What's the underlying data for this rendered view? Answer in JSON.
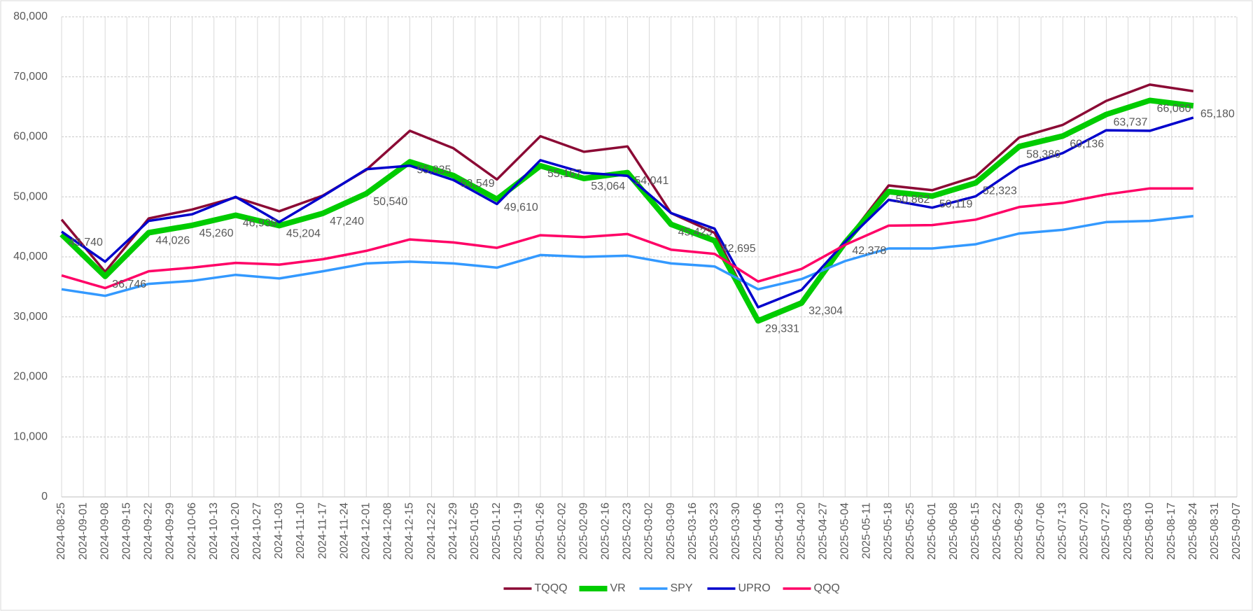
{
  "chart_data": {
    "type": "line",
    "x": [
      "2024-08-25",
      "2024-09-08",
      "2024-09-22",
      "2024-10-06",
      "2024-10-20",
      "2024-11-03",
      "2024-11-17",
      "2024-12-01",
      "2024-12-15",
      "2024-12-29",
      "2025-01-12",
      "2025-01-26",
      "2025-02-09",
      "2025-02-23",
      "2025-03-09",
      "2025-03-23",
      "2025-04-06",
      "2025-04-20",
      "2025-05-04",
      "2025-05-18",
      "2025-06-01",
      "2025-06-15",
      "2025-06-29",
      "2025-07-13",
      "2025-07-27",
      "2025-08-10",
      "2025-08-24"
    ],
    "series": [
      {
        "name": "TQQQ",
        "color": "#8b0a35",
        "width": 3.5,
        "values": [
          46200,
          37500,
          46400,
          47900,
          49900,
          47600,
          50200,
          54500,
          61000,
          58100,
          52900,
          60100,
          57500,
          58400,
          47300,
          44000,
          29600,
          32600,
          42500,
          51900,
          51100,
          53400,
          59900,
          62000,
          66000,
          68700,
          67600
        ]
      },
      {
        "name": "VR",
        "color": "#00cc00",
        "width": 8,
        "values": [
          43740,
          36746,
          44026,
          45260,
          46939,
          45204,
          47240,
          50540,
          55835,
          53549,
          49610,
          55167,
          53064,
          54041,
          45423,
          42695,
          29331,
          32304,
          42378,
          50862,
          50119,
          52323,
          58386,
          60136,
          63737,
          66060,
          65180
        ],
        "value_labels": [
          "43,740",
          "36,746",
          "44,026",
          "45,260",
          "46,939",
          "45,204",
          "47,240",
          "50,540",
          "55,835",
          "53,549",
          "49,610",
          "55,167",
          "53,064",
          "54,041",
          "45,423",
          "42,695",
          "29,331",
          "32,304",
          "42,378",
          "50,862",
          "50,119",
          "52,323",
          "58,386",
          "60,136",
          "63,737",
          "66,060",
          "65,180"
        ]
      },
      {
        "name": "SPY",
        "color": "#3399ff",
        "width": 3.5,
        "values": [
          34600,
          33500,
          35500,
          36000,
          37000,
          36400,
          37600,
          38900,
          39200,
          38900,
          38200,
          40300,
          40000,
          40200,
          38900,
          38400,
          34600,
          36300,
          39300,
          41400,
          41400,
          42100,
          43900,
          44500,
          45800,
          46000,
          46800
        ]
      },
      {
        "name": "UPRO",
        "color": "#0000cc",
        "width": 3.5,
        "values": [
          44200,
          39200,
          46000,
          47100,
          50000,
          45800,
          50100,
          54600,
          55200,
          52800,
          48800,
          56100,
          54000,
          53500,
          47300,
          44700,
          31600,
          34500,
          42500,
          49500,
          48200,
          50100,
          55000,
          57300,
          61100,
          61000,
          63200
        ]
      },
      {
        "name": "QQQ",
        "color": "#ff0066",
        "width": 3.5,
        "values": [
          36900,
          34800,
          37600,
          38200,
          39000,
          38700,
          39600,
          41000,
          42900,
          42400,
          41500,
          43600,
          43300,
          43800,
          41200,
          40500,
          35900,
          38000,
          42000,
          45200,
          45300,
          46200,
          48300,
          49000,
          50400,
          51400,
          51400
        ]
      }
    ],
    "xlim": [
      "2024-08-25",
      "2025-09-07"
    ],
    "xticks": [
      "2024-08-25",
      "2024-09-01",
      "2024-09-08",
      "2024-09-15",
      "2024-09-22",
      "2024-09-29",
      "2024-10-06",
      "2024-10-13",
      "2024-10-20",
      "2024-10-27",
      "2024-11-03",
      "2024-11-10",
      "2024-11-17",
      "2024-11-24",
      "2024-12-01",
      "2024-12-08",
      "2024-12-15",
      "2024-12-22",
      "2024-12-29",
      "2025-01-05",
      "2025-01-12",
      "2025-01-19",
      "2025-01-26",
      "2025-02-02",
      "2025-02-09",
      "2025-02-16",
      "2025-02-23",
      "2025-03-02",
      "2025-03-09",
      "2025-03-16",
      "2025-03-23",
      "2025-03-30",
      "2025-04-06",
      "2025-04-13",
      "2025-04-20",
      "2025-04-27",
      "2025-05-04",
      "2025-05-11",
      "2025-05-18",
      "2025-05-25",
      "2025-06-01",
      "2025-06-08",
      "2025-06-15",
      "2025-06-22",
      "2025-06-29",
      "2025-07-06",
      "2025-07-13",
      "2025-07-20",
      "2025-07-27",
      "2025-08-03",
      "2025-08-10",
      "2025-08-17",
      "2025-08-24",
      "2025-08-31",
      "2025-09-07"
    ],
    "ylim": [
      0,
      80000
    ],
    "yticks": [
      0,
      {
        "value": 10000,
        "label": "10,000"
      },
      {
        "value": 20000,
        "label": "20,000"
      },
      {
        "value": 30000,
        "label": "30,000"
      },
      {
        "value": 40000,
        "label": "40,000"
      },
      {
        "value": 50000,
        "label": "50,000"
      },
      {
        "value": 60000,
        "label": "60,000"
      },
      {
        "value": 70000,
        "label": "70,000"
      },
      {
        "value": 80000,
        "label": "80,000"
      }
    ],
    "grid": true,
    "legend": "bottom"
  }
}
